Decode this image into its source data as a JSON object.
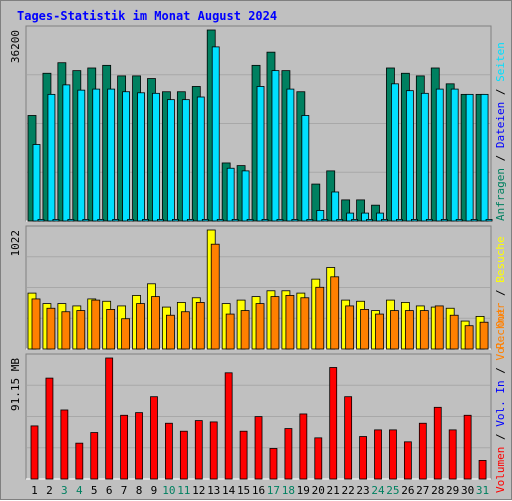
{
  "title": "Tages-Statistik im Monat August 2024",
  "colors": {
    "background": "#c0c0c0",
    "title": "#0000ff",
    "anfragen": "#008060",
    "dateien": "#00e0ff",
    "seiten": "#00e0ff",
    "besuche": "#ffff00",
    "rechner": "#ff8000",
    "vol_out": "#ff8000",
    "vol_in": "#0000ff",
    "volumen": "#ff0000",
    "weekend_label": "#008060",
    "weekday_label": "#000000"
  },
  "right_labels": {
    "top": [
      {
        "text": "Anfragen",
        "color": "#008060"
      },
      {
        "text": " / ",
        "color": "#000000"
      },
      {
        "text": "Dateien",
        "color": "#0000ff"
      },
      {
        "text": " / ",
        "color": "#000000"
      },
      {
        "text": "Seiten",
        "color": "#00e0ff"
      }
    ],
    "middle": [
      {
        "text": "Rechner",
        "color": "#ff8000"
      },
      {
        "text": " / ",
        "color": "#000000"
      },
      {
        "text": "Besuche",
        "color": "#ffff00"
      }
    ],
    "bottom": [
      {
        "text": "Volumen",
        "color": "#ff0000"
      },
      {
        "text": " / ",
        "color": "#000000"
      },
      {
        "text": "Vol. In",
        "color": "#0000ff"
      },
      {
        "text": " / ",
        "color": "#000000"
      },
      {
        "text": "Vol. Out",
        "color": "#ff8000"
      }
    ]
  },
  "chart_data": {
    "type": "bar",
    "categories": [
      "1",
      "2",
      "3",
      "4",
      "5",
      "6",
      "7",
      "8",
      "9",
      "10",
      "11",
      "12",
      "13",
      "14",
      "15",
      "16",
      "17",
      "18",
      "19",
      "20",
      "21",
      "22",
      "23",
      "24",
      "25",
      "26",
      "27",
      "28",
      "29",
      "30",
      "31"
    ],
    "weekend_days": [
      "3",
      "4",
      "10",
      "11",
      "17",
      "18",
      "24",
      "25",
      "31"
    ],
    "panels": [
      {
        "name": "top",
        "max_label": "36200",
        "max": 36200,
        "series": [
          {
            "name": "Anfragen",
            "values": [
              20000,
              28000,
              30000,
              28500,
              29000,
              29500,
              27500,
              27500,
              27000,
              24500,
              24500,
              25500,
              36200,
              11000,
              10500,
              29500,
              32000,
              28500,
              24500,
              7000,
              9500,
              4000,
              4000,
              3000,
              29000,
              28000,
              27500,
              29000,
              26000,
              24000,
              24000
            ]
          },
          {
            "name": "Dateien",
            "values": [
              14500,
              24000,
              25800,
              24800,
              25000,
              25000,
              24500,
              24300,
              24200,
              23000,
              23000,
              23500,
              33000,
              10000,
              9500,
              25500,
              28500,
              25000,
              20000,
              2000,
              5500,
              1500,
              1500,
              1500,
              26000,
              24700,
              24200,
              25000,
              25000,
              24000,
              24000
            ]
          },
          {
            "name": "Seiten",
            "values": [
              300,
              300,
              300,
              300,
              300,
              300,
              300,
              300,
              300,
              300,
              300,
              300,
              300,
              300,
              300,
              300,
              300,
              300,
              300,
              300,
              300,
              300,
              300,
              300,
              300,
              300,
              300,
              300,
              300,
              300,
              300
            ]
          }
        ]
      },
      {
        "name": "middle",
        "max_label": "1022",
        "max": 1022,
        "series": [
          {
            "name": "Besuche",
            "values": [
              480,
              390,
              390,
              370,
              430,
              410,
              370,
              460,
              560,
              360,
              400,
              440,
              1022,
              390,
              420,
              450,
              500,
              500,
              480,
              600,
              700,
              420,
              410,
              330,
              420,
              400,
              370,
              360,
              350,
              240,
              280
            ]
          },
          {
            "name": "Rechner",
            "values": [
              430,
              350,
              320,
              330,
              420,
              340,
              260,
              390,
              450,
              290,
              320,
              400,
              900,
              300,
              330,
              390,
              450,
              460,
              440,
              530,
              620,
              370,
              340,
              300,
              330,
              330,
              330,
              370,
              290,
              200,
              230
            ]
          }
        ]
      },
      {
        "name": "bottom",
        "max_label": "91.15 MB",
        "max": 91.15,
        "series": [
          {
            "name": "Volumen",
            "values": [
              40,
              76,
              52,
              27,
              35,
              91.15,
              48,
              50,
              62,
              42,
              36,
              44,
              43,
              80,
              36,
              47,
              23,
              38,
              49,
              31,
              84,
              62,
              32,
              37,
              37,
              28,
              42,
              54,
              37,
              48,
              14
            ]
          }
        ]
      }
    ]
  }
}
